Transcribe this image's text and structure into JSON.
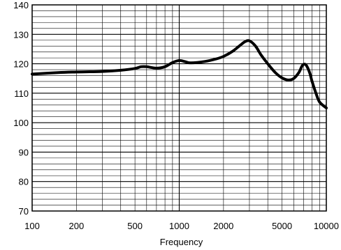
{
  "chart_data": {
    "type": "line",
    "title": "",
    "xlabel": "Frequency",
    "ylabel": "",
    "xscale": "log",
    "xlim": [
      100,
      10000
    ],
    "ylim": [
      70,
      140
    ],
    "grid": true,
    "x_ticks": [
      100,
      200,
      500,
      1000,
      2000,
      5000,
      10000
    ],
    "x_tick_labels": [
      "100",
      "200",
      "500",
      "1000",
      "2000",
      "5000",
      "10000"
    ],
    "y_ticks": [
      70,
      80,
      90,
      100,
      110,
      120,
      130,
      140
    ],
    "y_tick_labels": [
      "70",
      "80",
      "90",
      "100",
      "110",
      "120",
      "130",
      "140"
    ],
    "colors": {
      "line": "#000000",
      "grid": "#000000",
      "background": "#ffffff"
    },
    "series": [
      {
        "x": [
          100,
          150,
          200,
          300,
          400,
          500,
          550,
          600,
          700,
          800,
          900,
          1000,
          1100,
          1200,
          1500,
          1800,
          2000,
          2300,
          2600,
          2800,
          3000,
          3300,
          3600,
          4000,
          4500,
          5000,
          5500,
          6000,
          6500,
          6800,
          7000,
          7300,
          7700,
          8000,
          8500,
          9000,
          10000
        ],
        "y": [
          116.5,
          117,
          117.2,
          117.4,
          117.8,
          118.4,
          119,
          119,
          118.5,
          119,
          120.4,
          121.1,
          120.7,
          120.3,
          120.8,
          121.7,
          122.5,
          124.2,
          126.3,
          127.5,
          127.8,
          126,
          123,
          120,
          117,
          115.2,
          114.5,
          115,
          117,
          119,
          119.8,
          119.5,
          117,
          114,
          110,
          107,
          105
        ]
      }
    ]
  }
}
